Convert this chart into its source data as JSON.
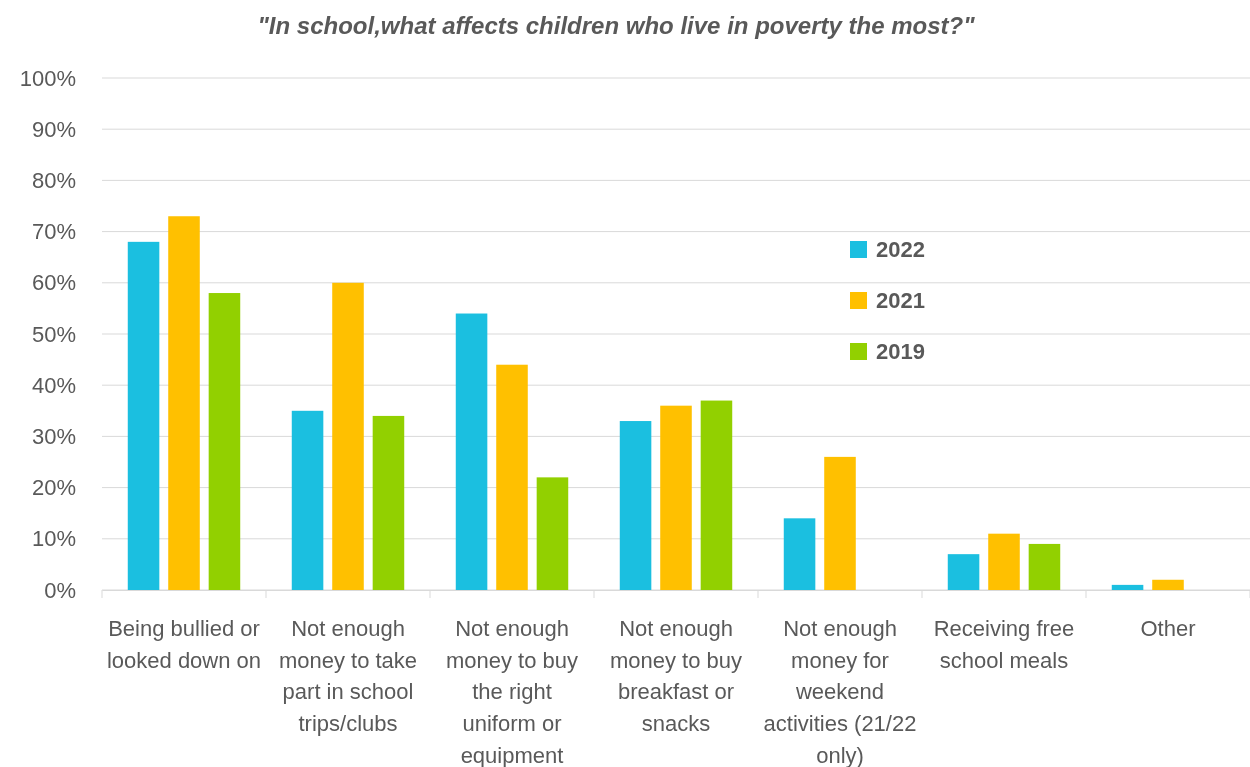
{
  "chart_data": {
    "type": "bar",
    "title": "\"In school,what affects children who live in poverty the most?\"",
    "categories": [
      "Being bullied or looked down on",
      "Not enough money to take part in school trips/clubs",
      "Not enough money to buy the right uniform or equipment",
      "Not enough money to buy breakfast or snacks",
      "Not enough money for weekend activities (21/22 only)",
      "Receiving free school meals",
      "Other"
    ],
    "series": [
      {
        "name": "2022",
        "color": "#1bbfe0",
        "values": [
          68,
          35,
          54,
          33,
          14,
          7,
          1
        ]
      },
      {
        "name": "2021",
        "color": "#ffc000",
        "values": [
          73,
          60,
          44,
          36,
          26,
          11,
          2
        ]
      },
      {
        "name": "2019",
        "color": "#92d000",
        "values": [
          58,
          34,
          22,
          37,
          null,
          9,
          null
        ]
      }
    ],
    "ylim": [
      0,
      100
    ],
    "yticks": [
      {
        "value": 0,
        "label": "0%"
      },
      {
        "value": 10,
        "label": "10%"
      },
      {
        "value": 20,
        "label": "20%"
      },
      {
        "value": 30,
        "label": "30%"
      },
      {
        "value": 40,
        "label": "40%"
      },
      {
        "value": 50,
        "label": "50%"
      },
      {
        "value": 60,
        "label": "60%"
      },
      {
        "value": 70,
        "label": "70%"
      },
      {
        "value": 80,
        "label": "80%"
      },
      {
        "value": 90,
        "label": "90%"
      },
      {
        "value": 100,
        "label": "100%"
      }
    ],
    "grid": "y",
    "legend": "right"
  }
}
